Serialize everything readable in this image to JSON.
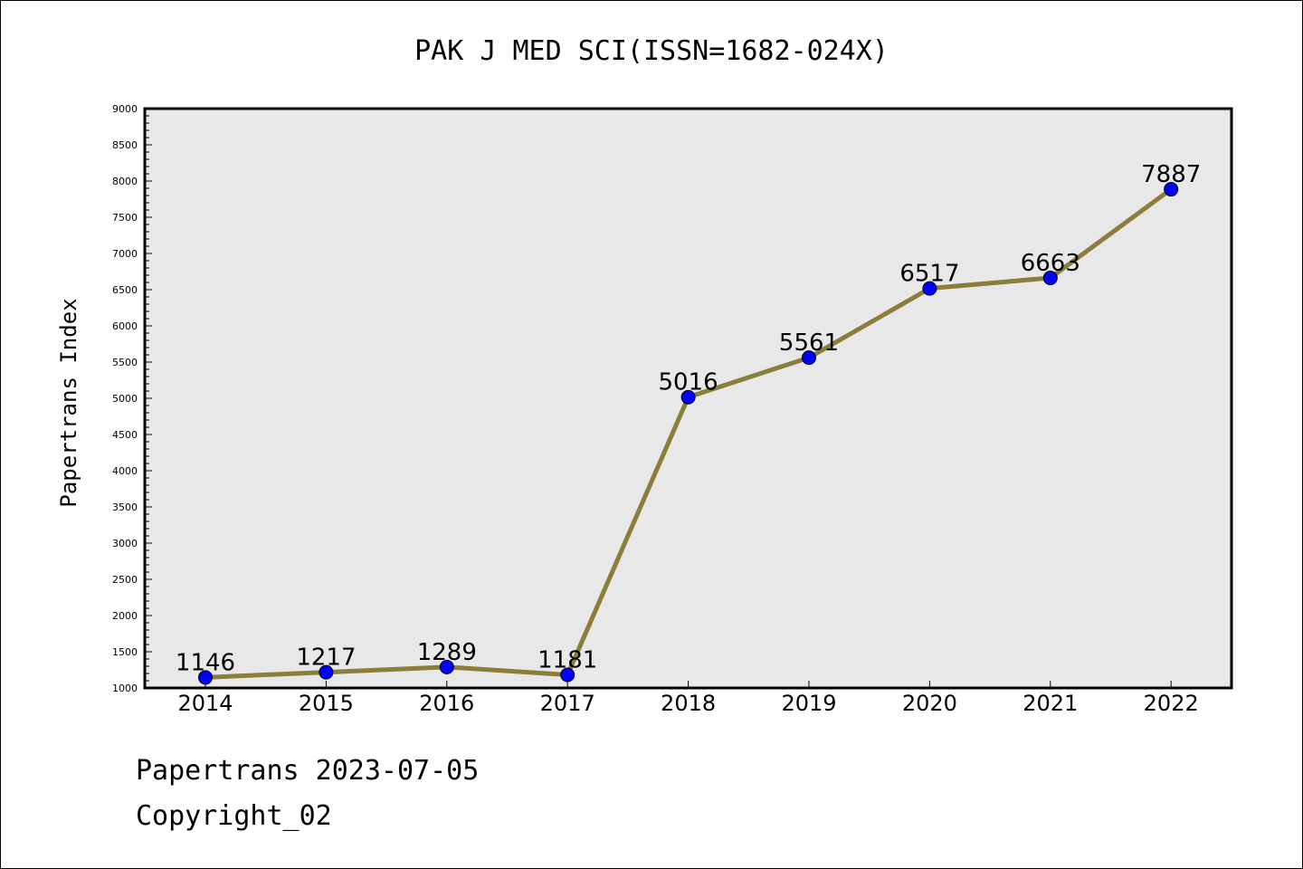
{
  "chart_data": {
    "type": "line",
    "title": "PAK J MED SCI(ISSN=1682-024X)",
    "xlabel": "",
    "ylabel": "Papertrans Index",
    "categories": [
      "2014",
      "2015",
      "2016",
      "2017",
      "2018",
      "2019",
      "2020",
      "2021",
      "2022"
    ],
    "series": [
      {
        "values": [
          1146,
          1217,
          1289,
          1181,
          5016,
          5561,
          6517,
          6663,
          7887
        ],
        "line_color": "#8b7d3a",
        "marker_color": "#0000ff"
      }
    ],
    "data_labels": [
      "1146",
      "1217",
      "1289",
      "1181",
      "5016",
      "5561",
      "6517",
      "6663",
      "7887"
    ],
    "ylim": [
      1000,
      9000
    ],
    "yticks": [
      "1000",
      "1500",
      "2000",
      "2500",
      "3000",
      "3500",
      "4000",
      "4500",
      "5000",
      "5500",
      "6000",
      "6500",
      "7000",
      "7500",
      "8000",
      "8500",
      "9000"
    ],
    "grid": false,
    "plot_background": "#e8e8e8"
  },
  "footer": {
    "line1": "Papertrans 2023-07-05",
    "line2": "Copyright_02"
  }
}
